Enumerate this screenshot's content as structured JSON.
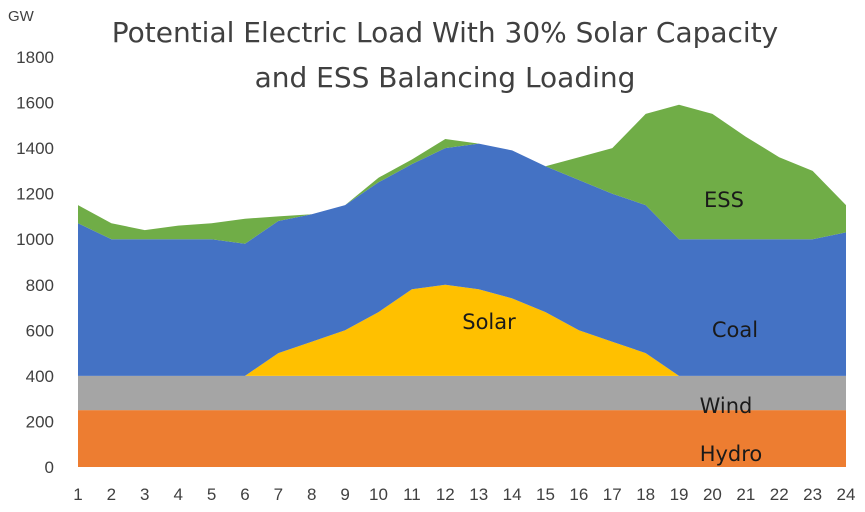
{
  "chart_data": {
    "type": "area",
    "stacked": true,
    "title_line1": "Potential Electric Load With 30% Solar Capacity",
    "title_line2": "and ESS Balancing Loading",
    "ylabel": "GW",
    "xlabel": "",
    "ylim": [
      0,
      1800
    ],
    "yticks": [
      0,
      200,
      400,
      600,
      800,
      1000,
      1200,
      1400,
      1600,
      1800
    ],
    "grid": false,
    "legend": "none",
    "x": [
      1,
      2,
      3,
      4,
      5,
      6,
      7,
      8,
      9,
      10,
      11,
      12,
      13,
      14,
      15,
      16,
      17,
      18,
      19,
      20,
      21,
      22,
      23,
      24
    ],
    "series": [
      {
        "name": "Hydro",
        "color": "#ed7d31",
        "values": [
          250,
          250,
          250,
          250,
          250,
          250,
          250,
          250,
          250,
          250,
          250,
          250,
          250,
          250,
          250,
          250,
          250,
          250,
          250,
          250,
          250,
          250,
          250,
          250
        ]
      },
      {
        "name": "Wind",
        "color": "#a5a5a5",
        "values": [
          150,
          150,
          150,
          150,
          150,
          150,
          150,
          150,
          150,
          150,
          150,
          150,
          150,
          150,
          150,
          150,
          150,
          150,
          150,
          150,
          150,
          150,
          150,
          150
        ]
      },
      {
        "name": "Solar",
        "color": "#ffc000",
        "values": [
          0,
          0,
          0,
          0,
          0,
          0,
          100,
          150,
          200,
          280,
          380,
          400,
          380,
          340,
          280,
          200,
          150,
          100,
          0,
          0,
          0,
          0,
          0,
          0
        ]
      },
      {
        "name": "Coal",
        "color": "#4472c4",
        "values": [
          670,
          600,
          600,
          600,
          600,
          580,
          580,
          560,
          550,
          570,
          550,
          600,
          640,
          650,
          640,
          660,
          650,
          650,
          600,
          600,
          600,
          600,
          600,
          630
        ]
      },
      {
        "name": "ESS",
        "color": "#70ad47",
        "values": [
          80,
          70,
          40,
          60,
          70,
          110,
          20,
          0,
          0,
          20,
          20,
          40,
          0,
          0,
          0,
          100,
          200,
          400,
          590,
          550,
          450,
          360,
          300,
          120
        ]
      }
    ],
    "series_labels": [
      "Hydro",
      "Wind",
      "Solar",
      "Coal",
      "ESS"
    ]
  }
}
